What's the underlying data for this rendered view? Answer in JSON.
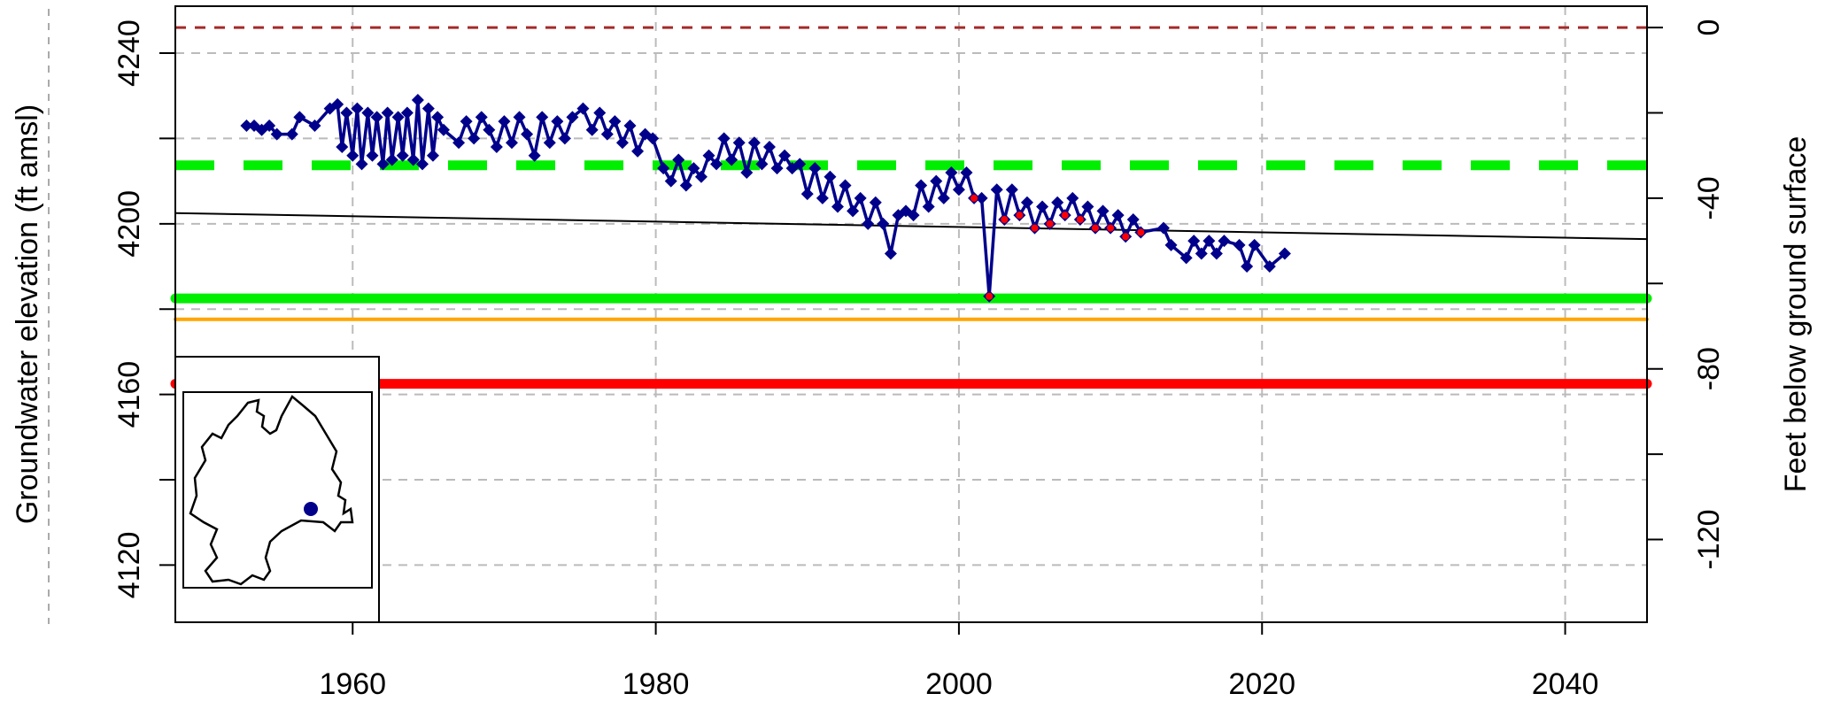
{
  "chart_data": {
    "type": "line",
    "ylabel": "Groundwater elevation (ft amsl)",
    "y2label": "Feet below ground surface",
    "xlim": [
      1948.3,
      2045.4
    ],
    "xticks": [
      1960,
      1980,
      2000,
      2020,
      2040
    ],
    "ylim": [
      4106.6,
      4251
    ],
    "yticks": [
      4120,
      4160,
      4200,
      4240
    ],
    "yminor_ticks": [
      4140,
      4180,
      4220
    ],
    "y2lim": [
      -139.4,
      5
    ],
    "y2ticks": [
      -120,
      -80,
      -40,
      0
    ],
    "y2minor_ticks": [
      -100,
      -60,
      -20
    ],
    "grid": true,
    "reference_lines": [
      {
        "value": 4246,
        "color": "#a52a2a",
        "style": "dashed",
        "width": 3
      },
      {
        "value": 4213.7,
        "color": "#00ee00",
        "style": "dashed",
        "width": 11
      },
      {
        "value": 4182.5,
        "color": "#00ee00",
        "style": "solid",
        "width": 11
      },
      {
        "value": 4177.6,
        "color": "#ffa500",
        "style": "solid",
        "width": 4
      },
      {
        "value": 4162.5,
        "color": "#ff0000",
        "style": "solid",
        "width": 11
      }
    ],
    "trend": {
      "x": [
        1948.3,
        2045.4
      ],
      "values": [
        4202.5,
        4196.4
      ],
      "color": "#000000"
    },
    "series": [
      {
        "color": "#00008b",
        "marker": "diamond",
        "line": true,
        "x": [
          1953,
          1953.5,
          1954,
          1954.5,
          1955,
          1956,
          1956.5,
          1957.5,
          1958.5,
          1959,
          1959.3,
          1959.6,
          1960,
          1960.3,
          1960.6,
          1961,
          1961.3,
          1961.6,
          1962,
          1962.3,
          1962.6,
          1963,
          1963.3,
          1963.6,
          1964,
          1964.3,
          1964.6,
          1965,
          1965.3,
          1965.6,
          1966,
          1967,
          1967.5,
          1968,
          1968.5,
          1969,
          1969.5,
          1970,
          1970.5,
          1971,
          1971.5,
          1972,
          1972.5,
          1973,
          1973.5,
          1974,
          1974.5,
          1975.2,
          1975.8,
          1976.3,
          1976.8,
          1977.3,
          1977.8,
          1978.3,
          1978.8,
          1979.3,
          1979.8,
          1980.5,
          1981,
          1981.5,
          1982,
          1982.5,
          1983,
          1983.5,
          1984,
          1984.5,
          1985,
          1985.5,
          1986,
          1986.5,
          1987,
          1987.5,
          1988,
          1988.5,
          1989,
          1989.5,
          1990,
          1990.5,
          1991,
          1991.5,
          1992,
          1992.5,
          1993,
          1993.5,
          1994,
          1994.5,
          1995,
          1995.5,
          1996,
          1996.5,
          1997,
          1997.5,
          1998,
          1998.5,
          1999,
          1999.5,
          2000,
          2000.5,
          2001,
          2001.5,
          2002,
          2002.5,
          2003,
          2003.5,
          2004,
          2004.5,
          2005,
          2005.5,
          2006,
          2006.5,
          2007,
          2007.5,
          2008,
          2008.5,
          2009,
          2009.5,
          2010,
          2010.5,
          2011,
          2011.5,
          2012,
          2013.5,
          2014,
          2015,
          2015.5,
          2016,
          2016.5,
          2017,
          2017.5,
          2018.5,
          2019,
          2019.5,
          2020.5,
          2021.5
        ],
        "values": [
          4223,
          4223,
          4222,
          4223,
          4221,
          4221,
          4225,
          4223,
          4227,
          4228,
          4218,
          4226,
          4216,
          4227,
          4214,
          4226,
          4216,
          4225,
          4214,
          4226,
          4215,
          4225,
          4216,
          4226,
          4215,
          4229,
          4214,
          4227,
          4216,
          4225,
          4222,
          4219,
          4224,
          4220,
          4225,
          4222,
          4218,
          4224,
          4219,
          4225,
          4221,
          4216,
          4225,
          4219,
          4224,
          4220,
          4225,
          4227,
          4222,
          4226,
          4221,
          4224,
          4219,
          4223,
          4217,
          4221,
          4220,
          4213,
          4210,
          4215,
          4209,
          4213,
          4211,
          4216,
          4214,
          4220,
          4215,
          4219,
          4212,
          4219,
          4214,
          4218,
          4213,
          4216,
          4213,
          4214,
          4207,
          4213,
          4206,
          4211,
          4204,
          4209,
          4203,
          4206,
          4200,
          4205,
          4200,
          4193,
          4202,
          4203,
          4202,
          4209,
          4204,
          4210,
          4206,
          4212,
          4208,
          4212,
          4206,
          4206,
          4183,
          4208,
          4201,
          4208,
          4202,
          4205,
          4199,
          4204,
          4200,
          4205,
          4202,
          4206,
          4201,
          4204,
          4199,
          4203,
          4199,
          4202,
          4197,
          4201,
          4198,
          4199,
          4195,
          4192,
          4196,
          4193,
          4196,
          4193,
          4196,
          4195,
          4190,
          4195,
          4190,
          4193
        ]
      },
      {
        "color": "#ff0000",
        "marker": "dot",
        "line": false,
        "x": [
          2001,
          2002,
          2003,
          2004,
          2005,
          2006,
          2007,
          2008,
          2009,
          2010,
          2011,
          2012
        ],
        "values": [
          4206,
          4183,
          4201,
          4202,
          4199,
          4200,
          4202,
          4201,
          4199,
          4199,
          4197,
          4198
        ]
      }
    ]
  }
}
